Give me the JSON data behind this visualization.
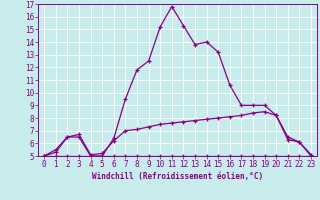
{
  "xlabel": "Windchill (Refroidissement éolien,°C)",
  "background_color": "#c8ecec",
  "line_color": "#880088",
  "grid_color": "#aadddd",
  "xlim": [
    -0.5,
    23.5
  ],
  "ylim": [
    5,
    17
  ],
  "xticks": [
    0,
    1,
    2,
    3,
    4,
    5,
    6,
    7,
    8,
    9,
    10,
    11,
    12,
    13,
    14,
    15,
    16,
    17,
    18,
    19,
    20,
    21,
    22,
    23
  ],
  "yticks": [
    5,
    6,
    7,
    8,
    9,
    10,
    11,
    12,
    13,
    14,
    15,
    16,
    17
  ],
  "curve1_x": [
    0,
    1,
    2,
    3,
    4,
    5,
    6,
    7,
    8,
    9,
    10,
    11,
    12,
    13,
    14,
    15,
    16,
    17,
    18,
    19,
    20,
    21,
    22,
    23
  ],
  "curve1_y": [
    5.0,
    5.3,
    6.5,
    6.5,
    5.0,
    5.0,
    6.4,
    9.5,
    11.8,
    12.5,
    15.2,
    16.8,
    15.3,
    13.8,
    14.0,
    13.2,
    10.6,
    9.0,
    9.0,
    9.0,
    8.2,
    6.3,
    6.1,
    5.0
  ],
  "curve2_x": [
    0,
    1,
    2,
    3,
    4,
    5,
    6,
    7,
    8,
    9,
    10,
    11,
    12,
    13,
    14,
    15,
    16,
    17,
    18,
    19,
    20,
    21,
    22,
    23
  ],
  "curve2_y": [
    5.0,
    5.0,
    5.0,
    5.0,
    5.0,
    5.0,
    5.0,
    5.0,
    5.0,
    5.0,
    5.0,
    5.0,
    5.0,
    5.0,
    5.0,
    5.0,
    5.0,
    5.0,
    5.0,
    5.0,
    5.0,
    5.0,
    5.0,
    5.0
  ],
  "curve3_x": [
    0,
    1,
    2,
    3,
    4,
    5,
    6,
    7,
    8,
    9,
    10,
    11,
    12,
    13,
    14,
    15,
    16,
    17,
    18,
    19,
    20,
    21,
    22,
    23
  ],
  "curve3_y": [
    5.0,
    5.5,
    6.5,
    6.7,
    5.1,
    5.2,
    6.2,
    7.0,
    7.1,
    7.3,
    7.5,
    7.6,
    7.7,
    7.8,
    7.9,
    8.0,
    8.1,
    8.2,
    8.4,
    8.5,
    8.2,
    6.5,
    6.1,
    5.1
  ],
  "tick_fontsize": 5.5,
  "xlabel_fontsize": 5.5,
  "linewidth": 0.9,
  "markersize": 3.5
}
